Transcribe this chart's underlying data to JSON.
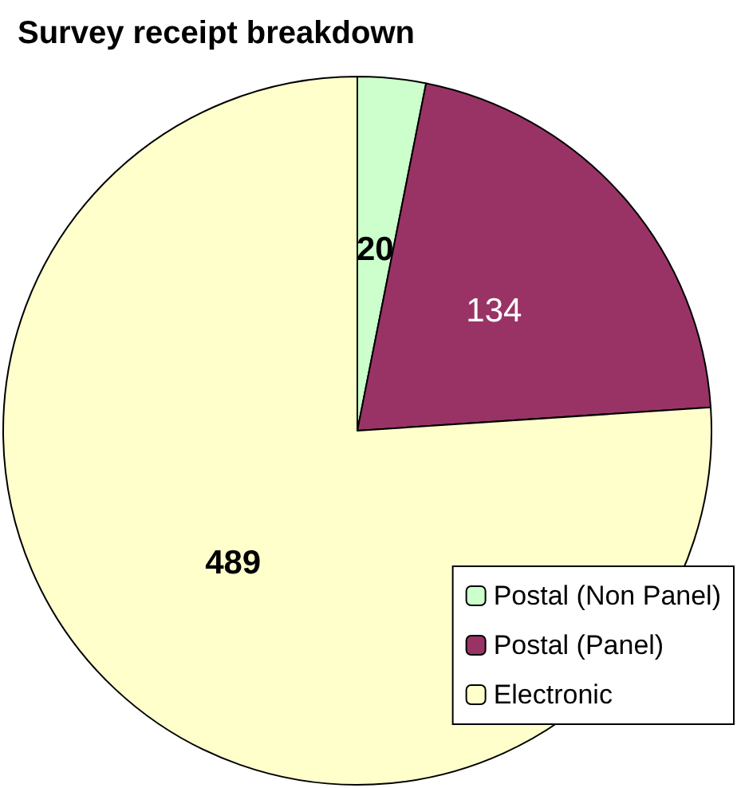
{
  "chart_data": {
    "type": "pie",
    "title": "Survey receipt breakdown",
    "categories": [
      "Postal (Non Panel)",
      "Postal (Panel)",
      "Electronic"
    ],
    "values": [
      20,
      134,
      489
    ],
    "colors": [
      "#ccffcc",
      "#993366",
      "#ffffcc"
    ],
    "data_labels": true,
    "legend": "bottom right"
  }
}
